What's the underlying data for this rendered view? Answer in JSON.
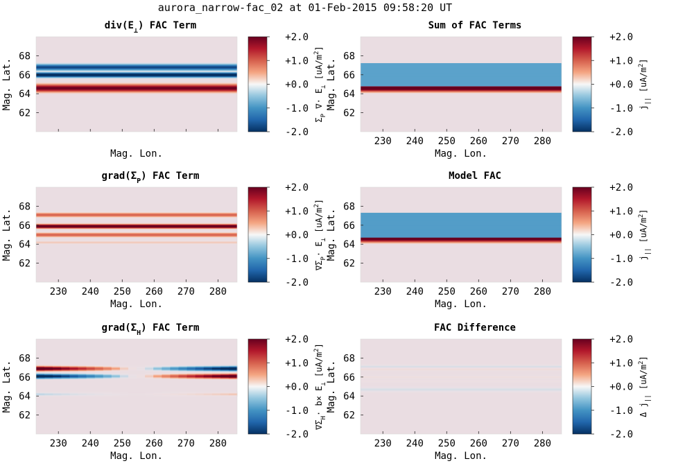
{
  "suptitle": "aurora_narrow-fac_02 at 01-Feb-2015 09:58:20 UT",
  "colormap": {
    "name": "diverging blue-white-red",
    "stops": [
      "#053061",
      "#2166ac",
      "#4393c3",
      "#92c5de",
      "#f7f7f7",
      "#f4a582",
      "#d6604d",
      "#b2182b",
      "#67001f"
    ],
    "background": "#eadde2"
  },
  "chart_data": [
    {
      "type": "heatmap",
      "title_parts": [
        "div(E",
        "⊥",
        ") FAC Term"
      ],
      "xlabel": "Mag. Lon.",
      "ylabel": "Mag. Lat.",
      "xlim": [
        223,
        286
      ],
      "ylim": [
        60,
        70
      ],
      "xticks": [
        "230",
        "240",
        "250",
        "260",
        "270",
        "280"
      ],
      "xticks_visible": false,
      "yticks": [
        "62",
        "64",
        "66",
        "68"
      ],
      "cbar": {
        "label_parts": [
          "Σ",
          "P",
          " ∇· E",
          "⊥",
          " [uA/m",
          "2",
          "]"
        ],
        "ticks": [
          "+2.0",
          "+1.0",
          "+0.0",
          "-1.0",
          "-2.0"
        ],
        "range": [
          -2,
          2
        ]
      },
      "bands": [
        {
          "lat": 64.6,
          "width": 0.35,
          "value": 2.0,
          "slope": 0
        },
        {
          "lat": 66.0,
          "width": 0.22,
          "value": -2.4,
          "slope": 0
        },
        {
          "lat": 66.8,
          "width": 0.28,
          "value": -1.8,
          "slope": 0.3,
          "taper": true
        }
      ]
    },
    {
      "type": "heatmap",
      "title_parts": [
        "Sum of FAC Terms"
      ],
      "xlabel": "Mag. Lon.",
      "ylabel": "Mag. Lat.",
      "xlim": [
        223,
        286
      ],
      "ylim": [
        60,
        70
      ],
      "xticks": [
        "230",
        "240",
        "250",
        "260",
        "270",
        "280"
      ],
      "xticks_visible": true,
      "yticks": [
        "62",
        "64",
        "66",
        "68"
      ],
      "cbar": {
        "label_parts": [
          "j",
          "||",
          " [uA/m",
          "2",
          "]"
        ],
        "ticks": [
          "+2.0",
          "+1.0",
          "+0.0",
          "-1.0",
          "-2.0"
        ],
        "range": [
          -2,
          2
        ]
      },
      "bands": [
        {
          "lat": 64.6,
          "width": 0.32,
          "value": 2.3,
          "slope": 0
        },
        {
          "lat": 66.0,
          "width": 0.7,
          "value": -0.85,
          "slope": 0,
          "flat": true
        }
      ]
    },
    {
      "type": "heatmap",
      "title_parts": [
        "grad(Σ",
        "P",
        ") FAC Term"
      ],
      "xlabel": "Mag. Lon.",
      "ylabel": "Mag. Lat.",
      "xlim": [
        223,
        286
      ],
      "ylim": [
        60,
        70
      ],
      "xticks": [
        "230",
        "240",
        "250",
        "260",
        "270",
        "280"
      ],
      "xticks_visible": true,
      "yticks": [
        "62",
        "64",
        "66",
        "68"
      ],
      "cbar": {
        "label_parts": [
          "∇Σ",
          "P",
          "· E",
          "⊥",
          " [uA/m",
          "2",
          "]"
        ],
        "ticks": [
          "+2.0",
          "+1.0",
          "+0.0",
          "-1.0",
          "-2.0"
        ],
        "range": [
          -2,
          2
        ]
      },
      "bands": [
        {
          "lat": 67.1,
          "width": 0.2,
          "value": 1.0,
          "slope": 0
        },
        {
          "lat": 65.9,
          "width": 0.18,
          "value": 2.5,
          "slope": 0
        },
        {
          "lat": 65.0,
          "width": 0.2,
          "value": 1.0,
          "slope": 0
        },
        {
          "lat": 64.2,
          "width": 0.15,
          "value": 0.35,
          "slope": 0
        }
      ]
    },
    {
      "type": "heatmap",
      "title_parts": [
        "Model FAC"
      ],
      "xlabel": "Mag. Lon.",
      "ylabel": "Mag. Lat.",
      "xlim": [
        223,
        286
      ],
      "ylim": [
        60,
        70
      ],
      "xticks": [
        "230",
        "240",
        "250",
        "260",
        "270",
        "280"
      ],
      "xticks_visible": true,
      "yticks": [
        "62",
        "64",
        "66",
        "68"
      ],
      "cbar": {
        "label_parts": [
          "j",
          "||",
          " [uA/m",
          "2",
          "]"
        ],
        "ticks": [
          "+2.0",
          "+1.0",
          "+0.0",
          "-1.0",
          "-2.0"
        ],
        "range": [
          -2,
          2
        ]
      },
      "bands": [
        {
          "lat": 64.6,
          "width": 0.33,
          "value": 2.2,
          "slope": 0
        },
        {
          "lat": 66.0,
          "width": 0.75,
          "value": -0.9,
          "slope": 0,
          "flat": true
        }
      ]
    },
    {
      "type": "heatmap",
      "title_parts": [
        "grad(Σ",
        "H",
        ") FAC Term"
      ],
      "xlabel": "Mag. Lon.",
      "ylabel": "Mag. Lat.",
      "xlim": [
        223,
        286
      ],
      "ylim": [
        60,
        70
      ],
      "xticks": [
        "230",
        "240",
        "250",
        "260",
        "270",
        "280"
      ],
      "xticks_visible": true,
      "yticks": [
        "62",
        "64",
        "66",
        "68"
      ],
      "cbar": {
        "label_parts": [
          "∇Σ",
          "H",
          "· b× E",
          "⊥",
          " [uA/m",
          "2",
          "]"
        ],
        "ticks": [
          "+2.0",
          "+1.0",
          "+0.0",
          "-1.0",
          "-2.0"
        ],
        "range": [
          -2,
          2
        ]
      },
      "bands": [
        {
          "lat": 66.9,
          "width": 0.2,
          "value": 2.0,
          "slope": 0,
          "antisym": true
        },
        {
          "lat": 66.1,
          "width": 0.2,
          "value": -2.0,
          "slope": 0,
          "antisym": true
        },
        {
          "lat": 64.2,
          "width": 0.15,
          "value": -0.3,
          "slope": 0,
          "antisym": true
        }
      ]
    },
    {
      "type": "heatmap",
      "title_parts": [
        "FAC Difference"
      ],
      "xlabel": "Mag. Lon.",
      "ylabel": "Mag. Lat.",
      "xlim": [
        223,
        286
      ],
      "ylim": [
        60,
        70
      ],
      "xticks": [
        "230",
        "240",
        "250",
        "260",
        "270",
        "280"
      ],
      "xticks_visible": true,
      "yticks": [
        "62",
        "64",
        "66",
        "68"
      ],
      "cbar": {
        "label_parts": [
          "Δ j",
          "||",
          " [uA/m",
          "2",
          "]"
        ],
        "ticks": [
          "+2.0",
          "+1.0",
          "+0.0",
          "-1.0",
          "-2.0"
        ],
        "range": [
          -2,
          2
        ]
      },
      "bands": [
        {
          "lat": 67.1,
          "width": 0.15,
          "value": -0.25,
          "slope": 0
        },
        {
          "lat": 66.8,
          "width": 0.1,
          "value": 0.2,
          "slope": 0
        },
        {
          "lat": 66.0,
          "width": 0.12,
          "value": 0.15,
          "slope": 0
        },
        {
          "lat": 65.6,
          "width": 0.12,
          "value": 0.1,
          "slope": 0
        },
        {
          "lat": 64.7,
          "width": 0.2,
          "value": -0.25,
          "slope": 0
        }
      ]
    }
  ]
}
